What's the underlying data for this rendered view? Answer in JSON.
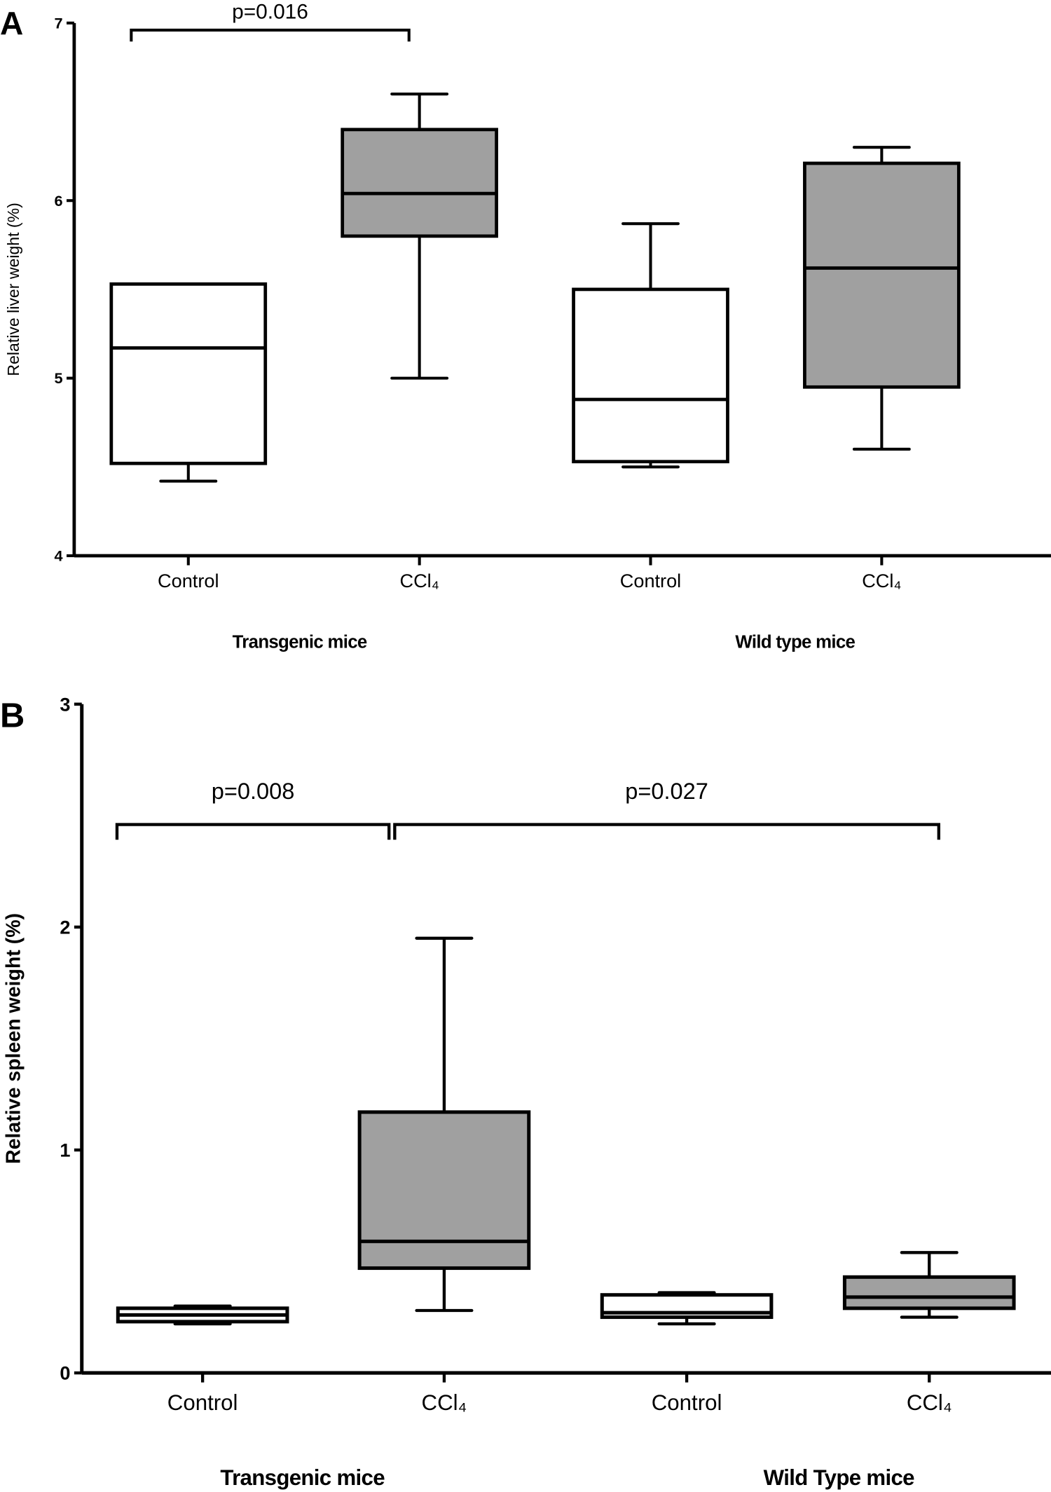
{
  "chart_data": [
    {
      "type": "box",
      "panel_label": "A",
      "ylabel": "Relative liver weight (%)",
      "ylim": [
        4,
        7
      ],
      "yticks": [
        "4",
        "5",
        "6",
        "7"
      ],
      "categories": [
        "Control",
        "CCl₄",
        "Control",
        "CCl₄"
      ],
      "groups": [
        "Transgenic mice",
        "Wild type mice"
      ],
      "series": [
        {
          "name": "Transgenic Control",
          "min": 4.42,
          "q1": 4.52,
          "median": 5.17,
          "q3": 5.53,
          "max": 5.53,
          "fill": "#ffffff"
        },
        {
          "name": "Transgenic CCl4",
          "min": 5.0,
          "q1": 5.8,
          "median": 6.04,
          "q3": 6.4,
          "max": 6.6,
          "fill": "#a0a0a0"
        },
        {
          "name": "Wild type Control",
          "min": 4.5,
          "q1": 4.53,
          "median": 4.88,
          "q3": 5.5,
          "max": 5.87,
          "fill": "#ffffff"
        },
        {
          "name": "Wild type CCl4",
          "min": 4.6,
          "q1": 4.95,
          "median": 5.62,
          "q3": 6.21,
          "max": 6.3,
          "fill": "#a0a0a0"
        }
      ],
      "annotations": [
        {
          "text": "p=0.016",
          "from": 0,
          "to": 1,
          "y": 6.96
        }
      ]
    },
    {
      "type": "box",
      "panel_label": "B",
      "ylabel": "Relative spleen weight (%)",
      "ylim": [
        0,
        3
      ],
      "yticks": [
        "0",
        "1",
        "2",
        "3"
      ],
      "categories": [
        "Control",
        "CCl₄",
        "Control",
        "CCl₄"
      ],
      "groups": [
        "Transgenic mice",
        "Wild Type mice"
      ],
      "series": [
        {
          "name": "Transgenic Control",
          "min": 0.22,
          "q1": 0.23,
          "median": 0.26,
          "q3": 0.29,
          "max": 0.3,
          "fill": "#ffffff"
        },
        {
          "name": "Transgenic CCl4",
          "min": 0.28,
          "q1": 0.47,
          "median": 0.59,
          "q3": 1.17,
          "max": 1.95,
          "fill": "#a0a0a0"
        },
        {
          "name": "Wild type Control",
          "min": 0.22,
          "q1": 0.25,
          "median": 0.27,
          "q3": 0.35,
          "max": 0.36,
          "fill": "#ffffff"
        },
        {
          "name": "Wild type CCl4",
          "min": 0.25,
          "q1": 0.29,
          "median": 0.34,
          "q3": 0.43,
          "max": 0.54,
          "fill": "#a0a0a0"
        }
      ],
      "annotations": [
        {
          "text": "p=0.008",
          "from": 0,
          "to": 1,
          "y": 2.46
        },
        {
          "text": "p=0.027",
          "from": 1,
          "to": 3,
          "y": 2.46
        }
      ]
    }
  ]
}
